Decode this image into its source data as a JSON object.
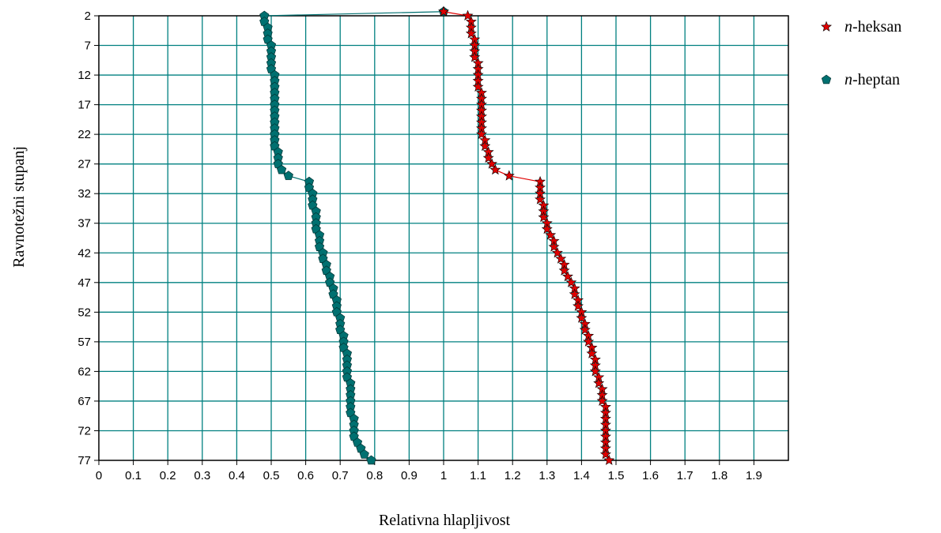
{
  "chart_data": {
    "type": "line",
    "xlabel": "Relativna hlapljivost",
    "ylabel": "Ravnotežni stupanj",
    "xlim": [
      0,
      2
    ],
    "ylim": [
      2,
      77
    ],
    "y_inverted": true,
    "x_ticks": [
      "0",
      "0.1",
      "0.2",
      "0.3",
      "0.4",
      "0.5",
      "0.6",
      "0.7",
      "0.8",
      "0.9",
      "1",
      "1.1",
      "1.2",
      "1.3",
      "1.4",
      "1.5",
      "1.6",
      "1.7",
      "1.8",
      "1.9"
    ],
    "y_ticks": [
      "2",
      "7",
      "12",
      "17",
      "22",
      "27",
      "32",
      "37",
      "42",
      "47",
      "52",
      "57",
      "62",
      "67",
      "72",
      "77"
    ],
    "grid": true,
    "grid_color": "#008080",
    "legend_position": "right",
    "series": [
      {
        "name_prefix": "n",
        "name_suffix": "-heksan",
        "color": "#e00000",
        "marker": "star",
        "points": [
          [
            1.0,
            1.3
          ],
          [
            1.07,
            2.0
          ],
          [
            1.08,
            3.0
          ],
          [
            1.08,
            4.0
          ],
          [
            1.08,
            5.0
          ],
          [
            1.09,
            6.0
          ],
          [
            1.09,
            7.0
          ],
          [
            1.09,
            8.0
          ],
          [
            1.09,
            9.0
          ],
          [
            1.1,
            10.0
          ],
          [
            1.1,
            11.0
          ],
          [
            1.1,
            12.0
          ],
          [
            1.1,
            13.0
          ],
          [
            1.1,
            14.0
          ],
          [
            1.11,
            15.0
          ],
          [
            1.11,
            16.0
          ],
          [
            1.11,
            17.0
          ],
          [
            1.11,
            18.0
          ],
          [
            1.11,
            19.0
          ],
          [
            1.11,
            20.0
          ],
          [
            1.11,
            21.0
          ],
          [
            1.11,
            22.0
          ],
          [
            1.12,
            23.0
          ],
          [
            1.12,
            24.0
          ],
          [
            1.13,
            25.0
          ],
          [
            1.13,
            26.0
          ],
          [
            1.14,
            27.0
          ],
          [
            1.15,
            28.0
          ],
          [
            1.19,
            29.0
          ],
          [
            1.28,
            30.0
          ],
          [
            1.28,
            31.0
          ],
          [
            1.28,
            32.0
          ],
          [
            1.28,
            33.0
          ],
          [
            1.29,
            34.0
          ],
          [
            1.29,
            35.0
          ],
          [
            1.29,
            36.0
          ],
          [
            1.3,
            37.0
          ],
          [
            1.3,
            38.0
          ],
          [
            1.31,
            39.0
          ],
          [
            1.32,
            40.0
          ],
          [
            1.32,
            41.0
          ],
          [
            1.33,
            42.0
          ],
          [
            1.34,
            43.0
          ],
          [
            1.35,
            44.0
          ],
          [
            1.35,
            45.0
          ],
          [
            1.36,
            46.0
          ],
          [
            1.37,
            47.0
          ],
          [
            1.38,
            48.0
          ],
          [
            1.38,
            49.0
          ],
          [
            1.39,
            50.0
          ],
          [
            1.39,
            51.0
          ],
          [
            1.4,
            52.0
          ],
          [
            1.4,
            53.0
          ],
          [
            1.41,
            54.0
          ],
          [
            1.41,
            55.0
          ],
          [
            1.42,
            56.0
          ],
          [
            1.42,
            57.0
          ],
          [
            1.43,
            58.0
          ],
          [
            1.43,
            59.0
          ],
          [
            1.44,
            60.0
          ],
          [
            1.44,
            61.0
          ],
          [
            1.44,
            62.0
          ],
          [
            1.45,
            63.0
          ],
          [
            1.45,
            64.0
          ],
          [
            1.46,
            65.0
          ],
          [
            1.46,
            66.0
          ],
          [
            1.46,
            67.0
          ],
          [
            1.47,
            68.0
          ],
          [
            1.47,
            69.0
          ],
          [
            1.47,
            70.0
          ],
          [
            1.47,
            71.0
          ],
          [
            1.47,
            72.0
          ],
          [
            1.47,
            73.0
          ],
          [
            1.47,
            74.0
          ],
          [
            1.47,
            75.0
          ],
          [
            1.47,
            76.0
          ],
          [
            1.48,
            77.0
          ]
        ]
      },
      {
        "name_prefix": "n",
        "name_suffix": "-heptan",
        "color": "#007070",
        "marker": "pentagon",
        "points": [
          [
            1.0,
            1.3
          ],
          [
            0.48,
            2.0
          ],
          [
            0.48,
            3.0
          ],
          [
            0.49,
            4.0
          ],
          [
            0.49,
            5.0
          ],
          [
            0.49,
            6.0
          ],
          [
            0.5,
            7.0
          ],
          [
            0.5,
            8.0
          ],
          [
            0.5,
            9.0
          ],
          [
            0.5,
            10.0
          ],
          [
            0.5,
            11.0
          ],
          [
            0.51,
            12.0
          ],
          [
            0.51,
            13.0
          ],
          [
            0.51,
            14.0
          ],
          [
            0.51,
            15.0
          ],
          [
            0.51,
            16.0
          ],
          [
            0.51,
            17.0
          ],
          [
            0.51,
            18.0
          ],
          [
            0.51,
            19.0
          ],
          [
            0.51,
            20.0
          ],
          [
            0.51,
            21.0
          ],
          [
            0.51,
            22.0
          ],
          [
            0.51,
            23.0
          ],
          [
            0.51,
            24.0
          ],
          [
            0.52,
            25.0
          ],
          [
            0.52,
            26.0
          ],
          [
            0.52,
            27.0
          ],
          [
            0.53,
            28.0
          ],
          [
            0.55,
            29.0
          ],
          [
            0.61,
            30.0
          ],
          [
            0.61,
            31.0
          ],
          [
            0.62,
            32.0
          ],
          [
            0.62,
            33.0
          ],
          [
            0.62,
            34.0
          ],
          [
            0.63,
            35.0
          ],
          [
            0.63,
            36.0
          ],
          [
            0.63,
            37.0
          ],
          [
            0.63,
            38.0
          ],
          [
            0.64,
            39.0
          ],
          [
            0.64,
            40.0
          ],
          [
            0.64,
            41.0
          ],
          [
            0.65,
            42.0
          ],
          [
            0.65,
            43.0
          ],
          [
            0.66,
            44.0
          ],
          [
            0.66,
            45.0
          ],
          [
            0.67,
            46.0
          ],
          [
            0.67,
            47.0
          ],
          [
            0.68,
            48.0
          ],
          [
            0.68,
            49.0
          ],
          [
            0.69,
            50.0
          ],
          [
            0.69,
            51.0
          ],
          [
            0.69,
            52.0
          ],
          [
            0.7,
            53.0
          ],
          [
            0.7,
            54.0
          ],
          [
            0.7,
            55.0
          ],
          [
            0.71,
            56.0
          ],
          [
            0.71,
            57.0
          ],
          [
            0.71,
            58.0
          ],
          [
            0.72,
            59.0
          ],
          [
            0.72,
            60.0
          ],
          [
            0.72,
            61.0
          ],
          [
            0.72,
            62.0
          ],
          [
            0.72,
            63.0
          ],
          [
            0.73,
            64.0
          ],
          [
            0.73,
            65.0
          ],
          [
            0.73,
            66.0
          ],
          [
            0.73,
            67.0
          ],
          [
            0.73,
            68.0
          ],
          [
            0.73,
            69.0
          ],
          [
            0.74,
            70.0
          ],
          [
            0.74,
            71.0
          ],
          [
            0.74,
            72.0
          ],
          [
            0.74,
            73.0
          ],
          [
            0.75,
            74.0
          ],
          [
            0.76,
            75.0
          ],
          [
            0.77,
            76.0
          ],
          [
            0.79,
            77.0
          ]
        ]
      }
    ]
  }
}
